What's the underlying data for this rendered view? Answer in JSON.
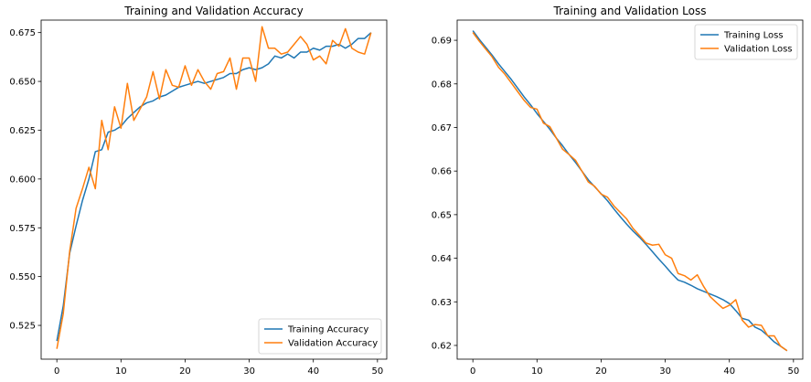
{
  "chart_data": [
    {
      "type": "line",
      "title": "Training and Validation Accuracy",
      "xlabel": "",
      "ylabel": "",
      "xlim": [
        -2.45,
        51.45
      ],
      "ylim": [
        0.5077,
        0.6814
      ],
      "xticks": [
        0,
        10,
        20,
        30,
        40,
        50
      ],
      "yticks": [
        0.525,
        0.55,
        0.575,
        0.6,
        0.625,
        0.65,
        0.675
      ],
      "ytick_labels": [
        "0.525",
        "0.550",
        "0.575",
        "0.600",
        "0.625",
        "0.650",
        "0.675"
      ],
      "grid": false,
      "legend_position": "lower right",
      "colors": {
        "Training Accuracy": "#1f77b4",
        "Validation Accuracy": "#ff7f0e"
      },
      "series": [
        {
          "name": "Training Accuracy",
          "x": [
            0,
            1,
            2,
            3,
            4,
            5,
            6,
            7,
            8,
            9,
            10,
            11,
            12,
            13,
            14,
            15,
            16,
            17,
            18,
            19,
            20,
            21,
            22,
            23,
            24,
            25,
            26,
            27,
            28,
            29,
            30,
            31,
            32,
            33,
            34,
            35,
            36,
            37,
            38,
            39,
            40,
            41,
            42,
            43,
            44,
            45,
            46,
            47,
            48,
            49
          ],
          "values": [
            0.517,
            0.535,
            0.562,
            0.576,
            0.589,
            0.6,
            0.614,
            0.615,
            0.624,
            0.625,
            0.627,
            0.631,
            0.634,
            0.637,
            0.639,
            0.64,
            0.642,
            0.643,
            0.645,
            0.647,
            0.648,
            0.649,
            0.65,
            0.649,
            0.65,
            0.651,
            0.652,
            0.654,
            0.654,
            0.656,
            0.657,
            0.656,
            0.657,
            0.659,
            0.663,
            0.662,
            0.664,
            0.662,
            0.665,
            0.665,
            0.667,
            0.666,
            0.668,
            0.668,
            0.669,
            0.667,
            0.669,
            0.672,
            0.672,
            0.675
          ]
        },
        {
          "name": "Validation Accuracy",
          "x": [
            0,
            1,
            2,
            3,
            4,
            5,
            6,
            7,
            8,
            9,
            10,
            11,
            12,
            13,
            14,
            15,
            16,
            17,
            18,
            19,
            20,
            21,
            22,
            23,
            24,
            25,
            26,
            27,
            28,
            29,
            30,
            31,
            32,
            33,
            34,
            35,
            36,
            37,
            38,
            39,
            40,
            41,
            42,
            43,
            44,
            45,
            46,
            47,
            48,
            49
          ],
          "values": [
            0.513,
            0.531,
            0.563,
            0.585,
            0.595,
            0.606,
            0.595,
            0.63,
            0.615,
            0.637,
            0.626,
            0.649,
            0.63,
            0.636,
            0.642,
            0.655,
            0.641,
            0.656,
            0.648,
            0.647,
            0.658,
            0.648,
            0.656,
            0.65,
            0.646,
            0.654,
            0.655,
            0.662,
            0.646,
            0.662,
            0.662,
            0.65,
            0.678,
            0.667,
            0.667,
            0.664,
            0.665,
            0.669,
            0.673,
            0.669,
            0.661,
            0.663,
            0.659,
            0.671,
            0.668,
            0.677,
            0.667,
            0.665,
            0.664,
            0.675
          ]
        }
      ]
    },
    {
      "type": "line",
      "title": "Training and Validation Loss",
      "xlabel": "",
      "ylabel": "",
      "xlim": [
        -2.45,
        51.45
      ],
      "ylim": [
        0.61685,
        0.69463
      ],
      "xticks": [
        0,
        10,
        20,
        30,
        40,
        50
      ],
      "yticks": [
        0.62,
        0.63,
        0.64,
        0.65,
        0.66,
        0.67,
        0.68,
        0.69
      ],
      "ytick_labels": [
        "0.62",
        "0.63",
        "0.64",
        "0.65",
        "0.66",
        "0.67",
        "0.68",
        "0.69"
      ],
      "grid": false,
      "legend_position": "upper right",
      "colors": {
        "Training Loss": "#1f77b4",
        "Validation Loss": "#ff7f0e"
      },
      "series": [
        {
          "name": "Training Loss",
          "x": [
            0,
            1,
            2,
            3,
            4,
            5,
            6,
            7,
            8,
            9,
            10,
            11,
            12,
            13,
            14,
            15,
            16,
            17,
            18,
            19,
            20,
            21,
            22,
            23,
            24,
            25,
            26,
            27,
            28,
            29,
            30,
            31,
            32,
            33,
            34,
            35,
            36,
            37,
            38,
            39,
            40,
            41,
            42,
            43,
            44,
            45,
            46,
            47,
            48,
            49
          ],
          "values": [
            0.6922,
            0.6902,
            0.6884,
            0.6866,
            0.6846,
            0.6828,
            0.681,
            0.679,
            0.677,
            0.6752,
            0.6732,
            0.6714,
            0.6696,
            0.6676,
            0.6658,
            0.6638,
            0.662,
            0.66,
            0.658,
            0.6564,
            0.6548,
            0.6532,
            0.6513,
            0.6495,
            0.6478,
            0.6462,
            0.6448,
            0.6432,
            0.6415,
            0.6398,
            0.6382,
            0.6365,
            0.635,
            0.6345,
            0.6338,
            0.633,
            0.6324,
            0.6318,
            0.6312,
            0.6305,
            0.6296,
            0.628,
            0.6262,
            0.6258,
            0.6242,
            0.6235,
            0.6222,
            0.6208,
            0.6198,
            0.6188
          ]
        },
        {
          "name": "Validation Loss",
          "x": [
            0,
            1,
            2,
            3,
            4,
            5,
            6,
            7,
            8,
            9,
            10,
            11,
            12,
            13,
            14,
            15,
            16,
            17,
            18,
            19,
            20,
            21,
            22,
            23,
            24,
            25,
            26,
            27,
            28,
            29,
            30,
            31,
            32,
            33,
            34,
            35,
            36,
            37,
            38,
            39,
            40,
            41,
            42,
            43,
            44,
            45,
            46,
            47,
            48,
            49
          ],
          "values": [
            0.6918,
            0.6898,
            0.688,
            0.6862,
            0.6838,
            0.6822,
            0.6802,
            0.6782,
            0.6762,
            0.6746,
            0.6742,
            0.671,
            0.6702,
            0.6676,
            0.665,
            0.6638,
            0.6625,
            0.66,
            0.6575,
            0.6565,
            0.6547,
            0.654,
            0.652,
            0.6505,
            0.649,
            0.6468,
            0.6452,
            0.6435,
            0.643,
            0.6432,
            0.6408,
            0.64,
            0.6365,
            0.636,
            0.635,
            0.6362,
            0.6335,
            0.6312,
            0.6298,
            0.6285,
            0.6292,
            0.6305,
            0.6258,
            0.6242,
            0.6248,
            0.6246,
            0.6222,
            0.6222,
            0.6198,
            0.6188
          ]
        }
      ]
    }
  ]
}
